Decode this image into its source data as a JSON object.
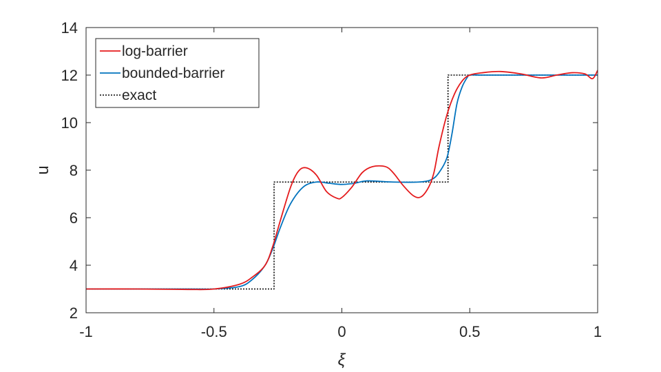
{
  "chart_data": {
    "type": "line",
    "xlabel": "ξ",
    "ylabel": "u",
    "xlim": [
      -1,
      1
    ],
    "ylim": [
      2,
      14
    ],
    "xticks": [
      -1,
      -0.5,
      0,
      0.5,
      1
    ],
    "xtick_labels": [
      "-1",
      "-0.5",
      "0",
      "0.5",
      "1"
    ],
    "yticks": [
      2,
      4,
      6,
      8,
      10,
      12,
      14
    ],
    "ytick_labels": [
      "2",
      "4",
      "6",
      "8",
      "10",
      "12",
      "14"
    ],
    "grid": false,
    "legend_position": "top-left",
    "series": [
      {
        "name": "log-barrier",
        "color": "#e41a1c",
        "style": "solid",
        "x": [
          -1.0,
          -0.8,
          -0.6,
          -0.5,
          -0.4,
          -0.35,
          -0.3,
          -0.27,
          -0.24,
          -0.2,
          -0.17,
          -0.14,
          -0.1,
          -0.06,
          -0.02,
          0.0,
          0.04,
          0.08,
          0.12,
          0.17,
          0.2,
          0.24,
          0.28,
          0.31,
          0.34,
          0.36,
          0.38,
          0.41,
          0.44,
          0.47,
          0.5,
          0.55,
          0.62,
          0.7,
          0.78,
          0.84,
          0.9,
          0.95,
          0.98,
          1.0
        ],
        "y": [
          3.0,
          3.0,
          2.98,
          3.0,
          3.2,
          3.5,
          4.0,
          4.8,
          5.9,
          7.3,
          7.95,
          8.1,
          7.8,
          7.1,
          6.82,
          6.85,
          7.3,
          7.9,
          8.15,
          8.15,
          7.9,
          7.35,
          6.92,
          6.88,
          7.3,
          7.9,
          9.0,
          10.3,
          11.2,
          11.75,
          12.0,
          12.1,
          12.15,
          12.05,
          11.88,
          12.0,
          12.1,
          12.05,
          11.85,
          12.2
        ]
      },
      {
        "name": "bounded-barrier",
        "color": "#0072bd",
        "style": "solid",
        "x": [
          -1.0,
          -0.6,
          -0.5,
          -0.4,
          -0.35,
          -0.3,
          -0.27,
          -0.24,
          -0.2,
          -0.15,
          -0.1,
          -0.05,
          0.0,
          0.05,
          0.1,
          0.2,
          0.3,
          0.35,
          0.38,
          0.41,
          0.43,
          0.45,
          0.47,
          0.49,
          0.5,
          0.55,
          0.7,
          0.9,
          1.0
        ],
        "y": [
          3.0,
          3.0,
          3.0,
          3.1,
          3.4,
          4.0,
          4.7,
          5.6,
          6.6,
          7.3,
          7.5,
          7.45,
          7.4,
          7.45,
          7.55,
          7.5,
          7.5,
          7.6,
          7.9,
          8.5,
          9.5,
          10.8,
          11.5,
          11.9,
          12.0,
          12.0,
          12.0,
          12.0,
          12.0
        ]
      },
      {
        "name": "exact",
        "color": "#000000",
        "style": "dotted",
        "x": [
          -1.0,
          -0.265,
          -0.265,
          0.415,
          0.415,
          1.0
        ],
        "y": [
          3.0,
          3.0,
          7.5,
          7.5,
          12.0,
          12.0
        ]
      }
    ]
  }
}
